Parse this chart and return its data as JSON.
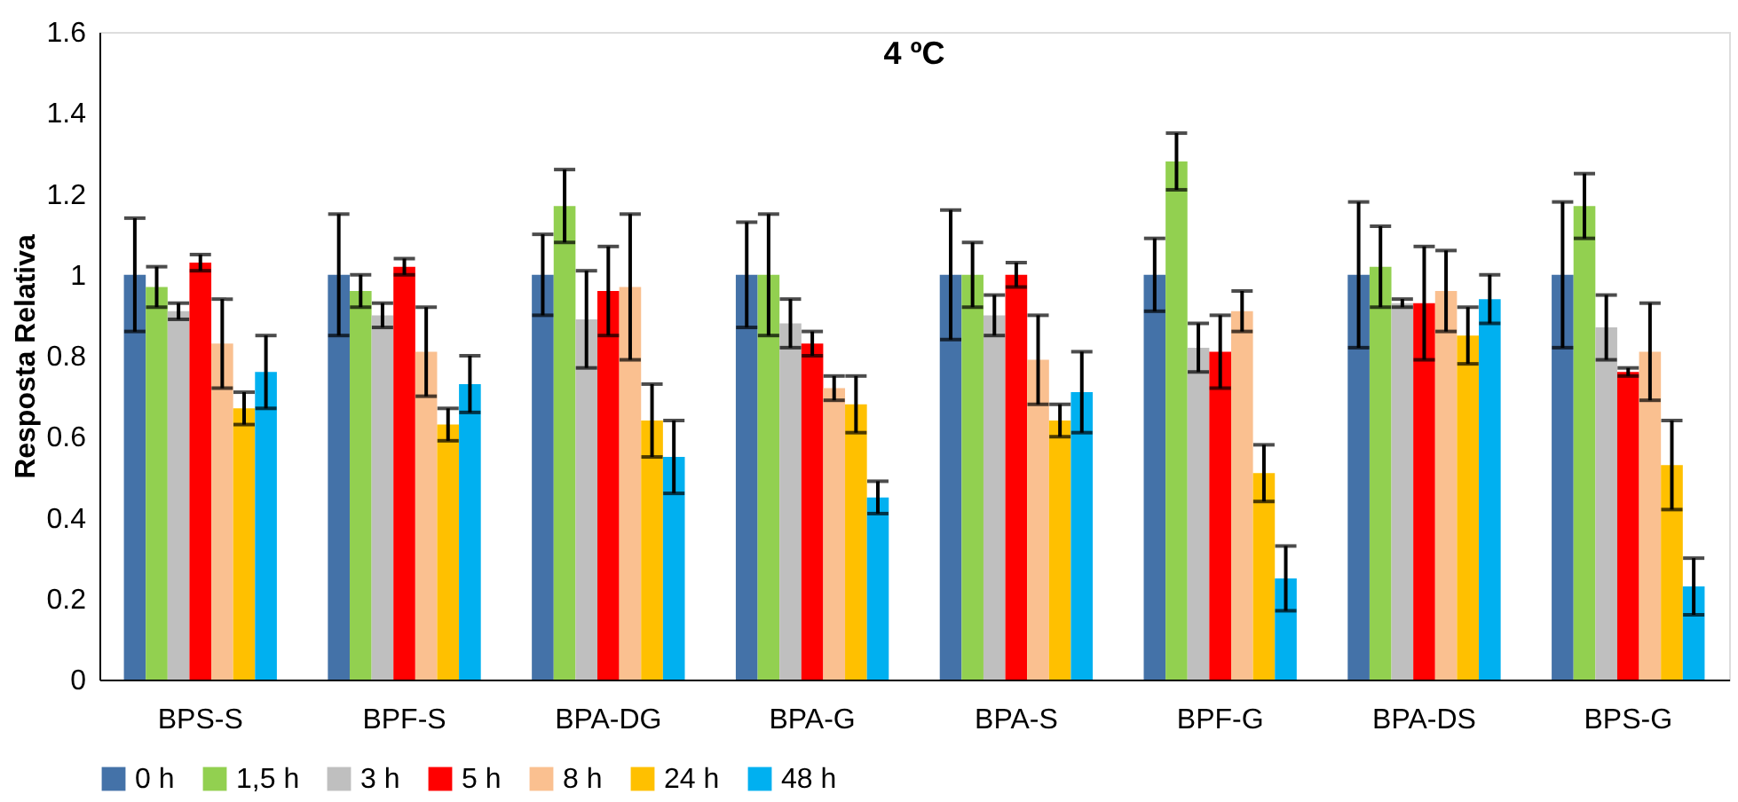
{
  "chart_data": {
    "type": "bar",
    "title": "4 ºC",
    "ylabel": "Resposta Relativa",
    "categories": [
      "BPS-S",
      "BPF-S",
      "BPA-DG",
      "BPA-G",
      "BPA-S",
      "BPF-G",
      "BPA-DS",
      "BPS-G"
    ],
    "series": [
      {
        "name": "0 h",
        "color": "#4472a8",
        "values": [
          1.0,
          1.0,
          1.0,
          1.0,
          1.0,
          1.0,
          1.0,
          1.0
        ],
        "errors": [
          0.14,
          0.15,
          0.1,
          0.13,
          0.16,
          0.09,
          0.18,
          0.18
        ]
      },
      {
        "name": "1,5 h",
        "color": "#92d050",
        "values": [
          0.97,
          0.96,
          1.17,
          1.0,
          1.0,
          1.28,
          1.02,
          1.17
        ],
        "errors": [
          0.05,
          0.04,
          0.09,
          0.15,
          0.08,
          0.07,
          0.1,
          0.08
        ]
      },
      {
        "name": "3 h",
        "color": "#bfbfbf",
        "values": [
          0.91,
          0.9,
          0.89,
          0.88,
          0.9,
          0.82,
          0.93,
          0.87
        ],
        "errors": [
          0.02,
          0.03,
          0.12,
          0.06,
          0.05,
          0.06,
          0.01,
          0.08
        ]
      },
      {
        "name": "5 h",
        "color": "#ff0000",
        "values": [
          1.03,
          1.02,
          0.96,
          0.83,
          1.0,
          0.81,
          0.93,
          0.76
        ],
        "errors": [
          0.02,
          0.02,
          0.11,
          0.03,
          0.03,
          0.09,
          0.14,
          0.01
        ]
      },
      {
        "name": "8 h",
        "color": "#fac090",
        "values": [
          0.83,
          0.81,
          0.97,
          0.72,
          0.79,
          0.91,
          0.96,
          0.81
        ],
        "errors": [
          0.11,
          0.11,
          0.18,
          0.03,
          0.11,
          0.05,
          0.1,
          0.12
        ]
      },
      {
        "name": "24 h",
        "color": "#ffc000",
        "values": [
          0.67,
          0.63,
          0.64,
          0.68,
          0.64,
          0.51,
          0.85,
          0.53
        ],
        "errors": [
          0.04,
          0.04,
          0.09,
          0.07,
          0.04,
          0.07,
          0.07,
          0.11
        ]
      },
      {
        "name": "48 h",
        "color": "#00b0f0",
        "values": [
          0.76,
          0.73,
          0.55,
          0.45,
          0.71,
          0.25,
          0.94,
          0.23
        ],
        "errors": [
          0.09,
          0.07,
          0.09,
          0.04,
          0.1,
          0.08,
          0.06,
          0.07
        ]
      }
    ],
    "ylim": [
      0,
      1.6
    ],
    "yticks": [
      0,
      0.2,
      0.4,
      0.6,
      0.8,
      1,
      1.2,
      1.4,
      1.6
    ],
    "grid": false,
    "legend": "bottom"
  }
}
